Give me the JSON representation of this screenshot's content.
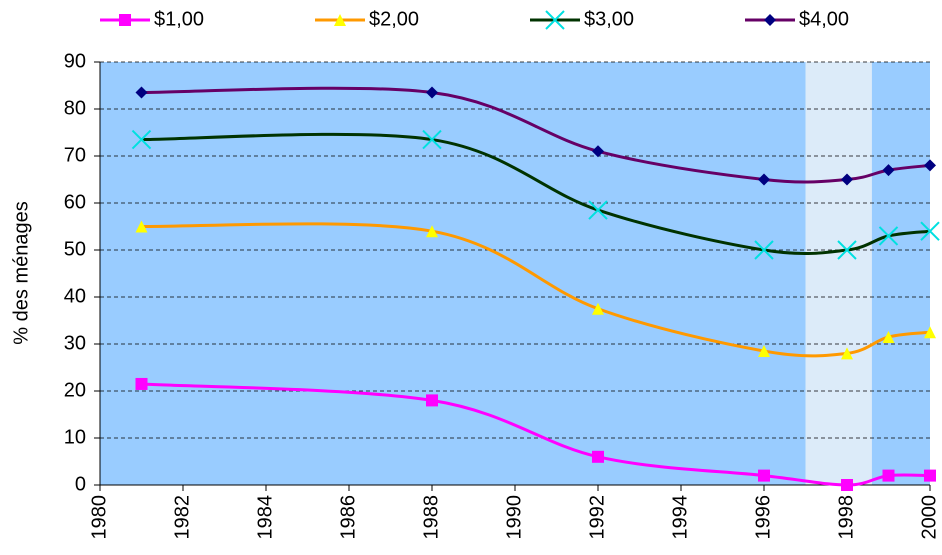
{
  "chart_data": {
    "type": "line",
    "smooth": true,
    "y_label": "% des ménages",
    "x": [
      1981,
      1988,
      1992,
      1996,
      1998,
      1999,
      2000
    ],
    "series": [
      {
        "name": "$1,00",
        "color": "#ff00ff",
        "marker": "square",
        "marker_color": "#ff00ff",
        "values": [
          21.5,
          18,
          6,
          2,
          0,
          2,
          2
        ]
      },
      {
        "name": "$2,00",
        "color": "#ff9900",
        "marker": "triangle",
        "marker_color": "#ffff00",
        "values": [
          55,
          54,
          37.5,
          28.5,
          28,
          31.5,
          32.5
        ]
      },
      {
        "name": "$3,00",
        "color": "#003300",
        "marker": "x",
        "marker_color": "#00e0e0",
        "values": [
          73.5,
          73.5,
          58.5,
          50,
          50,
          53,
          54
        ]
      },
      {
        "name": "$4,00",
        "color": "#660066",
        "marker": "diamond",
        "marker_color": "#000080",
        "values": [
          83.5,
          83.5,
          71,
          65,
          65,
          67,
          68
        ]
      }
    ],
    "xlim": [
      1980,
      2000
    ],
    "xticks": [
      1980,
      1982,
      1984,
      1986,
      1988,
      1990,
      1992,
      1994,
      1996,
      1998,
      2000
    ],
    "ylim": [
      0,
      90
    ],
    "yticks": [
      0,
      10,
      20,
      30,
      40,
      50,
      60,
      70,
      80,
      90
    ],
    "grid": true,
    "plot_background": "#99ccff",
    "highlight_x": [
      1997,
      1998.6
    ],
    "highlight_color": "#e8f0f8",
    "legend": "top"
  }
}
